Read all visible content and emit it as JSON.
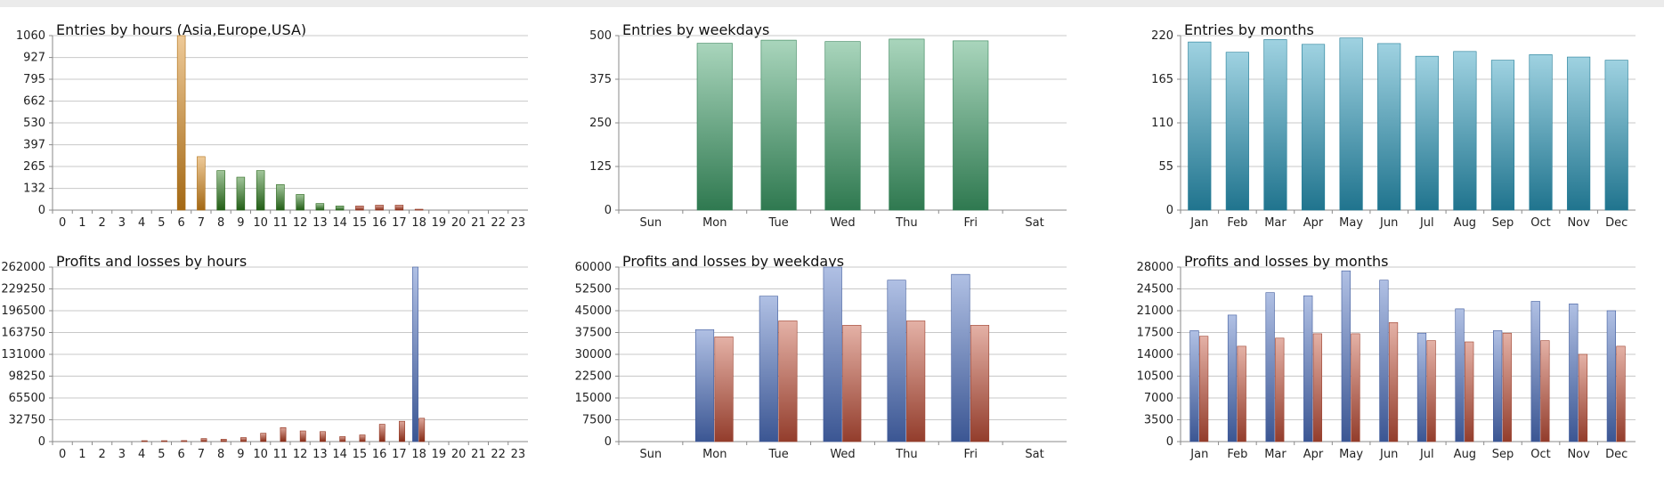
{
  "chart_data": [
    {
      "type": "bar",
      "title": "Entries by hours (Asia,Europe,USA)",
      "categories": [
        "0",
        "1",
        "2",
        "3",
        "4",
        "5",
        "6",
        "7",
        "8",
        "9",
        "10",
        "11",
        "12",
        "13",
        "14",
        "15",
        "16",
        "17",
        "18",
        "19",
        "20",
        "21",
        "22",
        "23"
      ],
      "yticks": [
        "0",
        "132",
        "265",
        "397",
        "530",
        "662",
        "795",
        "927",
        "1060"
      ],
      "ylim": [
        0,
        1060
      ],
      "values": [
        0,
        0,
        0,
        0,
        0,
        0,
        1060,
        325,
        240,
        200,
        240,
        155,
        95,
        40,
        25,
        25,
        30,
        30,
        5,
        0,
        0,
        0,
        0,
        0
      ],
      "bar_colors": [
        "#2f7d1e",
        "#2f7d1e",
        "#2f7d1e",
        "#2f7d1e",
        "#2f7d1e",
        "#2f7d1e",
        "#d98a1a",
        "#d98a1a",
        "#2f7d1e",
        "#2f7d1e",
        "#2f7d1e",
        "#2f7d1e",
        "#2f7d1e",
        "#2f7d1e",
        "#2f7d1e",
        "#b23a1e",
        "#b23a1e",
        "#b23a1e",
        "#b23a1e",
        "#b23a1e",
        "#b23a1e",
        "#b23a1e",
        "#b23a1e",
        "#b23a1e"
      ],
      "grid": true
    },
    {
      "type": "bar",
      "title": "Entries by weekdays",
      "categories": [
        "Sun",
        "Mon",
        "Tue",
        "Wed",
        "Thu",
        "Fri",
        "Sat"
      ],
      "yticks": [
        "0",
        "125",
        "250",
        "375",
        "500"
      ],
      "ylim": [
        0,
        500
      ],
      "values": [
        0,
        478,
        487,
        483,
        490,
        485,
        0
      ],
      "color": "#3fa16b",
      "grid": true
    },
    {
      "type": "bar",
      "title": "Entries by months",
      "categories": [
        "Jan",
        "Feb",
        "Mar",
        "Apr",
        "May",
        "Jun",
        "Jul",
        "Aug",
        "Sep",
        "Oct",
        "Nov",
        "Dec"
      ],
      "yticks": [
        "0",
        "55",
        "110",
        "165",
        "220"
      ],
      "ylim": [
        0,
        220
      ],
      "values": [
        212,
        199,
        215,
        209,
        217,
        210,
        194,
        200,
        189,
        196,
        193,
        189
      ],
      "color": "#2a9bbd",
      "grid": true
    },
    {
      "type": "bar",
      "title": "Profits and losses by hours",
      "categories": [
        "0",
        "1",
        "2",
        "3",
        "4",
        "5",
        "6",
        "7",
        "8",
        "9",
        "10",
        "11",
        "12",
        "13",
        "14",
        "15",
        "16",
        "17",
        "18",
        "19",
        "20",
        "21",
        "22",
        "23"
      ],
      "yticks": [
        "0",
        "32750",
        "65500",
        "98250",
        "131000",
        "163750",
        "196500",
        "229250",
        "262000"
      ],
      "ylim": [
        0,
        262000
      ],
      "series": [
        {
          "values": [
            0,
            0,
            0,
            0,
            0,
            0,
            0,
            0,
            0,
            0,
            0,
            0,
            0,
            0,
            0,
            0,
            0,
            0,
            262000,
            0,
            0,
            0,
            0,
            0
          ]
        },
        {
          "values": [
            0,
            0,
            0,
            0,
            300,
            400,
            1500,
            4500,
            3500,
            6000,
            12500,
            21000,
            16000,
            15000,
            7500,
            10000,
            26000,
            30500,
            35000,
            0,
            0,
            0,
            0,
            0
          ]
        }
      ],
      "series_colors": [
        "#4f72c4",
        "#b23a1e"
      ],
      "grid": true
    },
    {
      "type": "bar",
      "title": "Profits and losses by weekdays",
      "categories": [
        "Sun",
        "Mon",
        "Tue",
        "Wed",
        "Thu",
        "Fri",
        "Sat"
      ],
      "yticks": [
        "0",
        "7500",
        "15000",
        "22500",
        "30000",
        "37500",
        "45000",
        "52500",
        "60000"
      ],
      "ylim": [
        0,
        60000
      ],
      "series": [
        {
          "values": [
            0,
            38500,
            50000,
            60000,
            55500,
            57500,
            0
          ]
        },
        {
          "values": [
            0,
            36000,
            41500,
            40000,
            41500,
            40000,
            0
          ]
        }
      ],
      "series_colors": [
        "#4f72c4",
        "#c4513a"
      ],
      "grid": true
    },
    {
      "type": "bar",
      "title": "Profits and losses by months",
      "categories": [
        "Jan",
        "Feb",
        "Mar",
        "Apr",
        "May",
        "Jun",
        "Jul",
        "Aug",
        "Sep",
        "Oct",
        "Nov",
        "Dec"
      ],
      "yticks": [
        "0",
        "3500",
        "7000",
        "10500",
        "14000",
        "17500",
        "21000",
        "24500",
        "28000"
      ],
      "ylim": [
        0,
        28000
      ],
      "series": [
        {
          "values": [
            17800,
            20300,
            23900,
            23400,
            27400,
            25900,
            17400,
            21300,
            17800,
            22500,
            22100,
            21000
          ]
        },
        {
          "values": [
            16900,
            15300,
            16600,
            17300,
            17300,
            19100,
            16200,
            16000,
            17400,
            16200,
            14000,
            15300
          ]
        }
      ],
      "series_colors": [
        "#4f72c4",
        "#c4513a"
      ],
      "grid": true
    }
  ]
}
